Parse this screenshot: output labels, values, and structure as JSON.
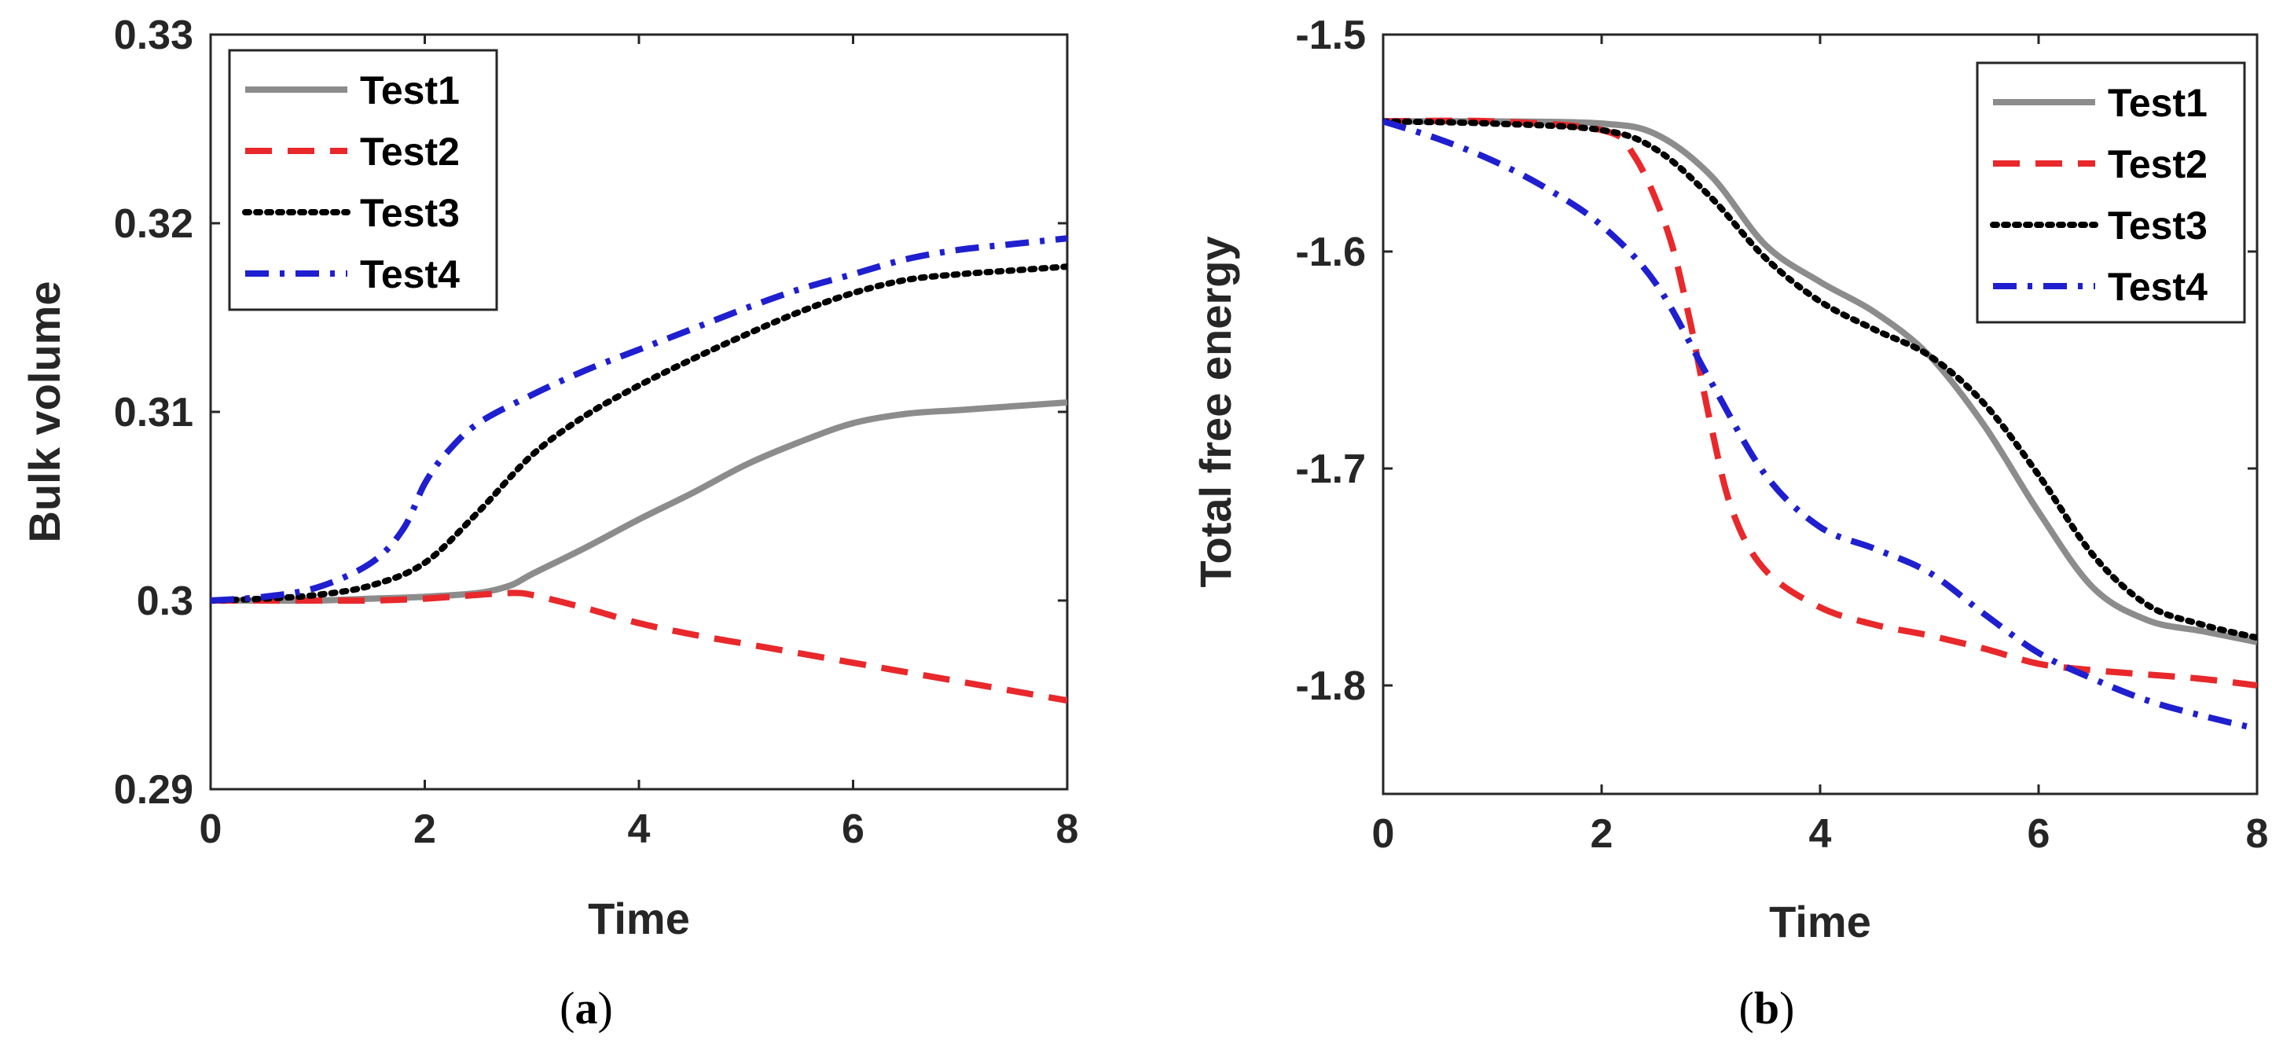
{
  "chart_data": [
    {
      "type": "line",
      "caption_open": "(",
      "caption_letter": "a",
      "caption_close": ")",
      "title": "",
      "xlabel": "Time",
      "ylabel": "Bulk volume",
      "xlim": [
        0,
        8
      ],
      "ylim": [
        0.29,
        0.33
      ],
      "xticks": [
        0,
        2,
        4,
        6,
        8
      ],
      "xtick_labels": [
        "0",
        "2",
        "4",
        "6",
        "8"
      ],
      "yticks": [
        0.29,
        0.3,
        0.31,
        0.32,
        0.33
      ],
      "ytick_labels": [
        "0.29",
        "0.3",
        "0.31",
        "0.32",
        "0.33"
      ],
      "grid": false,
      "legend_position": "top-left",
      "series": [
        {
          "name": "Test1",
          "color": "#8c8c8c",
          "style": "solid",
          "x": [
            0,
            0.5,
            1,
            1.5,
            2,
            2.5,
            2.8,
            3,
            3.5,
            4,
            4.5,
            5,
            5.5,
            6,
            6.5,
            7,
            7.5,
            8
          ],
          "values": [
            0.3,
            0.3,
            0.3,
            0.3001,
            0.3002,
            0.3004,
            0.3008,
            0.3014,
            0.3028,
            0.3043,
            0.3057,
            0.3072,
            0.3084,
            0.3094,
            0.3099,
            0.3101,
            0.3103,
            0.3105
          ]
        },
        {
          "name": "Test2",
          "color": "#e8282b",
          "style": "dashed",
          "x": [
            0,
            0.5,
            1,
            1.5,
            2,
            2.5,
            2.8,
            3,
            3.5,
            4,
            4.5,
            5,
            5.5,
            6,
            6.5,
            7,
            7.5,
            8
          ],
          "values": [
            0.3,
            0.3,
            0.3,
            0.3,
            0.3001,
            0.3003,
            0.3004,
            0.3003,
            0.2996,
            0.2988,
            0.2982,
            0.2977,
            0.2972,
            0.2967,
            0.2962,
            0.2957,
            0.2952,
            0.2947
          ]
        },
        {
          "name": "Test3",
          "color": "#000000",
          "style": "dotted",
          "x": [
            0,
            0.5,
            1,
            1.5,
            2,
            2.5,
            3,
            3.5,
            4,
            4.5,
            5,
            5.5,
            6,
            6.5,
            7,
            7.5,
            8
          ],
          "values": [
            0.3,
            0.3001,
            0.3003,
            0.3008,
            0.302,
            0.3047,
            0.3077,
            0.3098,
            0.3114,
            0.3128,
            0.3141,
            0.3153,
            0.3163,
            0.317,
            0.3173,
            0.3175,
            0.3177
          ]
        },
        {
          "name": "Test4",
          "color": "#1f1fd0",
          "style": "dashdot",
          "x": [
            0,
            0.5,
            1,
            1.5,
            1.8,
            2,
            2.2,
            2.5,
            3,
            3.5,
            4,
            4.5,
            5,
            5.5,
            6,
            6.5,
            7,
            7.5,
            8
          ],
          "values": [
            0.3,
            0.3002,
            0.3007,
            0.302,
            0.3038,
            0.3062,
            0.3078,
            0.3094,
            0.3109,
            0.3122,
            0.3133,
            0.3144,
            0.3155,
            0.3165,
            0.3173,
            0.3181,
            0.3186,
            0.3189,
            0.3192
          ]
        }
      ]
    },
    {
      "type": "line",
      "caption_open": "(",
      "caption_letter": "b",
      "caption_close": ")",
      "title": "",
      "xlabel": "Time",
      "ylabel": "Total free energy",
      "xlim": [
        0,
        8
      ],
      "ylim": [
        -1.85,
        -1.5
      ],
      "xticks": [
        0,
        2,
        4,
        6,
        8
      ],
      "xtick_labels": [
        "0",
        "2",
        "4",
        "6",
        "8"
      ],
      "yticks": [
        -1.8,
        -1.7,
        -1.6,
        -1.5
      ],
      "ytick_labels": [
        "-1.8",
        "-1.7",
        "-1.6",
        "-1.5"
      ],
      "grid": false,
      "legend_position": "top-right",
      "series": [
        {
          "name": "Test1",
          "color": "#8c8c8c",
          "style": "solid",
          "x": [
            0,
            1,
            2,
            2.5,
            3,
            3.5,
            4,
            4.5,
            5,
            5.5,
            6,
            6.5,
            7,
            7.5,
            8
          ],
          "values": [
            -1.54,
            -1.54,
            -1.541,
            -1.546,
            -1.565,
            -1.597,
            -1.614,
            -1.628,
            -1.648,
            -1.68,
            -1.72,
            -1.755,
            -1.77,
            -1.775,
            -1.78
          ]
        },
        {
          "name": "Test2",
          "color": "#e8282b",
          "style": "dashed",
          "x": [
            0,
            1,
            2,
            2.3,
            2.6,
            2.8,
            3,
            3.2,
            3.5,
            4,
            4.5,
            5,
            5.5,
            6,
            6.5,
            7,
            7.5,
            8
          ],
          "values": [
            -1.54,
            -1.54,
            -1.544,
            -1.556,
            -1.59,
            -1.63,
            -1.68,
            -1.72,
            -1.747,
            -1.764,
            -1.772,
            -1.777,
            -1.783,
            -1.79,
            -1.793,
            -1.795,
            -1.797,
            -1.8
          ]
        },
        {
          "name": "Test3",
          "color": "#000000",
          "style": "dotted",
          "x": [
            0,
            1,
            2,
            2.5,
            3,
            3.5,
            4,
            4.5,
            5,
            5.5,
            6,
            6.5,
            7,
            7.5,
            8
          ],
          "values": [
            -1.54,
            -1.541,
            -1.544,
            -1.553,
            -1.575,
            -1.603,
            -1.623,
            -1.636,
            -1.648,
            -1.67,
            -1.703,
            -1.74,
            -1.763,
            -1.772,
            -1.778
          ]
        },
        {
          "name": "Test4",
          "color": "#1f1fd0",
          "style": "dashdot",
          "x": [
            0,
            0.5,
            1,
            1.5,
            2,
            2.5,
            3,
            3.5,
            4,
            4.5,
            5,
            5.5,
            6,
            6.5,
            7,
            7.5,
            8
          ],
          "values": [
            -1.54,
            -1.548,
            -1.558,
            -1.571,
            -1.588,
            -1.615,
            -1.66,
            -1.703,
            -1.727,
            -1.737,
            -1.748,
            -1.767,
            -1.785,
            -1.797,
            -1.807,
            -1.814,
            -1.82
          ]
        }
      ]
    }
  ]
}
